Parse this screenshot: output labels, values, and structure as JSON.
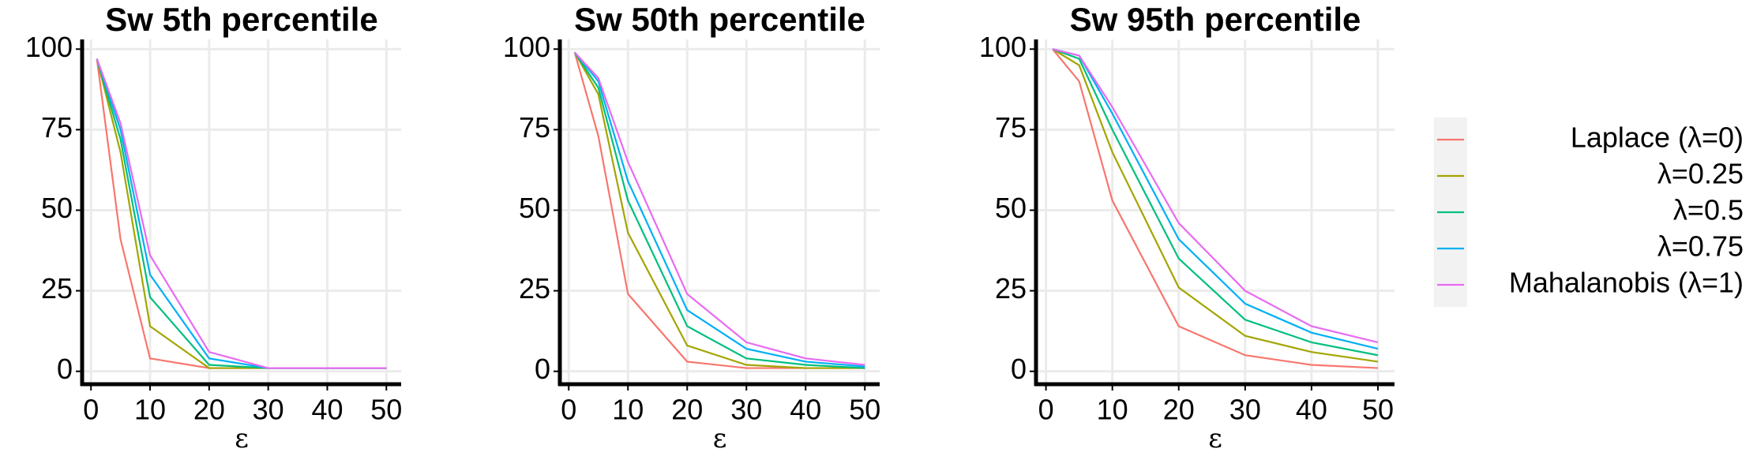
{
  "chart_data": [
    {
      "type": "line",
      "title": "Sw 5th percentile",
      "xlabel": "ε",
      "x": [
        1,
        5,
        10,
        20,
        30,
        40,
        50
      ],
      "series": [
        {
          "color": "#F8766D",
          "values": [
            97,
            41,
            4,
            1,
            1,
            1,
            1
          ]
        },
        {
          "color": "#A3A500",
          "values": [
            97,
            68,
            14,
            1,
            1,
            1,
            1
          ]
        },
        {
          "color": "#00BF7D",
          "values": [
            97,
            72,
            23,
            2,
            1,
            1,
            1
          ]
        },
        {
          "color": "#00B0F6",
          "values": [
            97,
            75,
            30,
            4,
            1,
            1,
            1
          ]
        },
        {
          "color": "#E76BF3",
          "values": [
            97,
            77,
            36,
            6,
            1,
            1,
            1
          ]
        }
      ],
      "xlim": [
        -1.5,
        52.5
      ],
      "xticks": [
        0,
        10,
        20,
        30,
        40,
        50
      ],
      "ylim": [
        -4,
        103
      ],
      "yticks": [
        0,
        25,
        50,
        75,
        100
      ],
      "grid": true
    },
    {
      "type": "line",
      "title": "Sw 50th percentile",
      "xlabel": "ε",
      "x": [
        1,
        5,
        10,
        20,
        30,
        40,
        50
      ],
      "series": [
        {
          "color": "#F8766D",
          "values": [
            99,
            73,
            24,
            3,
            1,
            1,
            1
          ]
        },
        {
          "color": "#A3A500",
          "values": [
            99,
            86,
            43,
            8,
            2,
            1,
            1
          ]
        },
        {
          "color": "#00BF7D",
          "values": [
            99,
            88,
            53,
            14,
            4,
            2,
            1
          ]
        },
        {
          "color": "#00B0F6",
          "values": [
            99,
            90,
            59,
            19,
            7,
            3,
            1.5
          ]
        },
        {
          "color": "#E76BF3",
          "values": [
            99,
            91,
            65,
            24,
            9,
            4,
            2
          ]
        }
      ],
      "xlim": [
        -1.5,
        52.5
      ],
      "xticks": [
        0,
        10,
        20,
        30,
        40,
        50
      ],
      "ylim": [
        -4,
        103
      ],
      "yticks": [
        0,
        25,
        50,
        75,
        100
      ],
      "grid": true
    },
    {
      "type": "line",
      "title": "Sw 95th percentile",
      "xlabel": "ε",
      "x": [
        1,
        5,
        10,
        20,
        30,
        40,
        50
      ],
      "series": [
        {
          "name": "Laplace (λ=0)",
          "color": "#F8766D",
          "values": [
            100,
            90,
            53,
            14,
            5,
            2,
            1
          ]
        },
        {
          "name": "λ=0.25",
          "color": "#A3A500",
          "values": [
            100,
            95,
            68,
            26,
            11,
            6,
            3
          ]
        },
        {
          "name": "λ=0.5",
          "color": "#00BF7D",
          "values": [
            100,
            97,
            75,
            35,
            16,
            9,
            5
          ]
        },
        {
          "name": "λ=0.75",
          "color": "#00B0F6",
          "values": [
            100,
            98,
            80,
            41,
            21,
            12,
            7
          ]
        },
        {
          "name": "Mahalanobis (λ=1)",
          "color": "#E76BF3",
          "values": [
            100,
            98,
            82,
            46,
            25,
            14,
            9
          ]
        }
      ],
      "xlim": [
        -1.5,
        52.5
      ],
      "xticks": [
        0,
        10,
        20,
        30,
        40,
        50
      ],
      "ylim": [
        -4,
        103
      ],
      "yticks": [
        0,
        25,
        50,
        75,
        100
      ],
      "grid": true,
      "legend": "right"
    }
  ]
}
